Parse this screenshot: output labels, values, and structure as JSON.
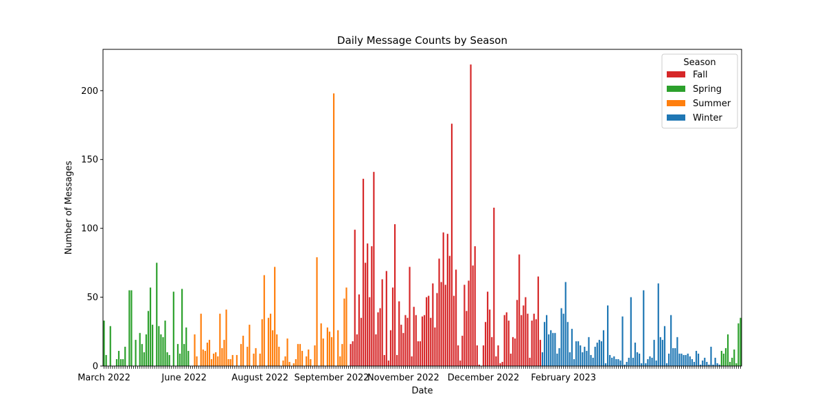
{
  "colors": {
    "Fall": "#d62728",
    "Spring": "#2ca02c",
    "Summer": "#ff7f0e",
    "Winter": "#1f77b4"
  },
  "chart_data": {
    "type": "bar",
    "title": "Daily Message Counts by Season",
    "xlabel": "Date",
    "ylabel": "Number of Messages",
    "ylim": [
      0,
      230
    ],
    "yticks": [
      0,
      50,
      100,
      150,
      200
    ],
    "xtick_labels": [
      "March 2022",
      "June 2022",
      "August 2022",
      "September 2022",
      "November 2022",
      "December 2022",
      "February 2023"
    ],
    "xtick_positions": [
      0,
      38,
      74,
      108,
      142,
      180,
      218
    ],
    "legend": {
      "title": "Season",
      "entries": [
        "Fall",
        "Spring",
        "Summer",
        "Winter"
      ],
      "placement": "top-right"
    },
    "series": [
      {
        "name": "Spring",
        "values": [
          33,
          8,
          0,
          29,
          0,
          0,
          5,
          11,
          5,
          5,
          14,
          0,
          55,
          55,
          0,
          19,
          0,
          24,
          16,
          10,
          23,
          40,
          57,
          30,
          0,
          75,
          29,
          23,
          21,
          33,
          10,
          8,
          0,
          54,
          0,
          16,
          9,
          56,
          16,
          28,
          11,
          0
        ]
      },
      {
        "name": "Summer",
        "values": [
          0,
          23,
          7,
          0,
          38,
          12,
          11,
          17,
          19,
          5,
          9,
          10,
          7,
          38,
          13,
          19,
          41,
          5,
          5,
          8,
          0,
          8,
          0,
          16,
          22,
          0,
          14,
          30,
          0,
          9,
          13,
          0,
          9,
          34,
          66,
          0,
          35,
          38,
          26,
          72,
          23,
          14,
          0,
          4,
          7,
          20,
          3,
          0,
          2,
          5,
          16,
          16,
          11,
          0,
          7,
          12,
          5,
          0,
          15,
          79,
          0,
          31,
          20,
          0,
          28,
          25,
          21,
          198,
          0,
          26,
          7,
          16,
          49,
          57,
          0
        ]
      },
      {
        "name": "Fall",
        "values": [
          16,
          18,
          99,
          23,
          52,
          35,
          136,
          75,
          89,
          50,
          87,
          141,
          23,
          39,
          42,
          63,
          8,
          69,
          4,
          26,
          57,
          103,
          8,
          47,
          30,
          24,
          37,
          35,
          72,
          7,
          43,
          37,
          18,
          18,
          36,
          37,
          50,
          51,
          35,
          60,
          28,
          53,
          78,
          61,
          97,
          59,
          96,
          80,
          176,
          51,
          70,
          15,
          4,
          22,
          59,
          40,
          62,
          219,
          73,
          87,
          15,
          1,
          0,
          15,
          32,
          54,
          41,
          21,
          115,
          7,
          15,
          2,
          3,
          37,
          39,
          33,
          9,
          21,
          20,
          48,
          81,
          37,
          44,
          50,
          38,
          6,
          33,
          38,
          34,
          65,
          19
        ]
      },
      {
        "name": "Winter",
        "values": [
          10,
          32,
          37,
          23,
          26,
          24,
          24,
          9,
          13,
          42,
          38,
          61,
          32,
          10,
          27,
          5,
          18,
          18,
          15,
          10,
          14,
          11,
          21,
          8,
          6,
          14,
          17,
          19,
          18,
          26,
          2,
          44,
          8,
          6,
          7,
          5,
          5,
          4,
          36,
          1,
          3,
          6,
          50,
          6,
          17,
          10,
          9,
          2,
          55,
          2,
          5,
          7,
          6,
          19,
          4,
          60,
          21,
          19,
          29,
          2,
          9,
          37,
          13,
          13,
          21,
          9,
          9,
          8,
          8,
          9,
          7,
          5,
          3,
          11,
          9,
          1,
          4,
          6,
          3,
          1,
          14,
          1,
          6,
          2,
          1
        ]
      },
      {
        "name": "Spring",
        "values": [
          11,
          9,
          13,
          23,
          3,
          6,
          12,
          2,
          31,
          35
        ]
      }
    ]
  }
}
